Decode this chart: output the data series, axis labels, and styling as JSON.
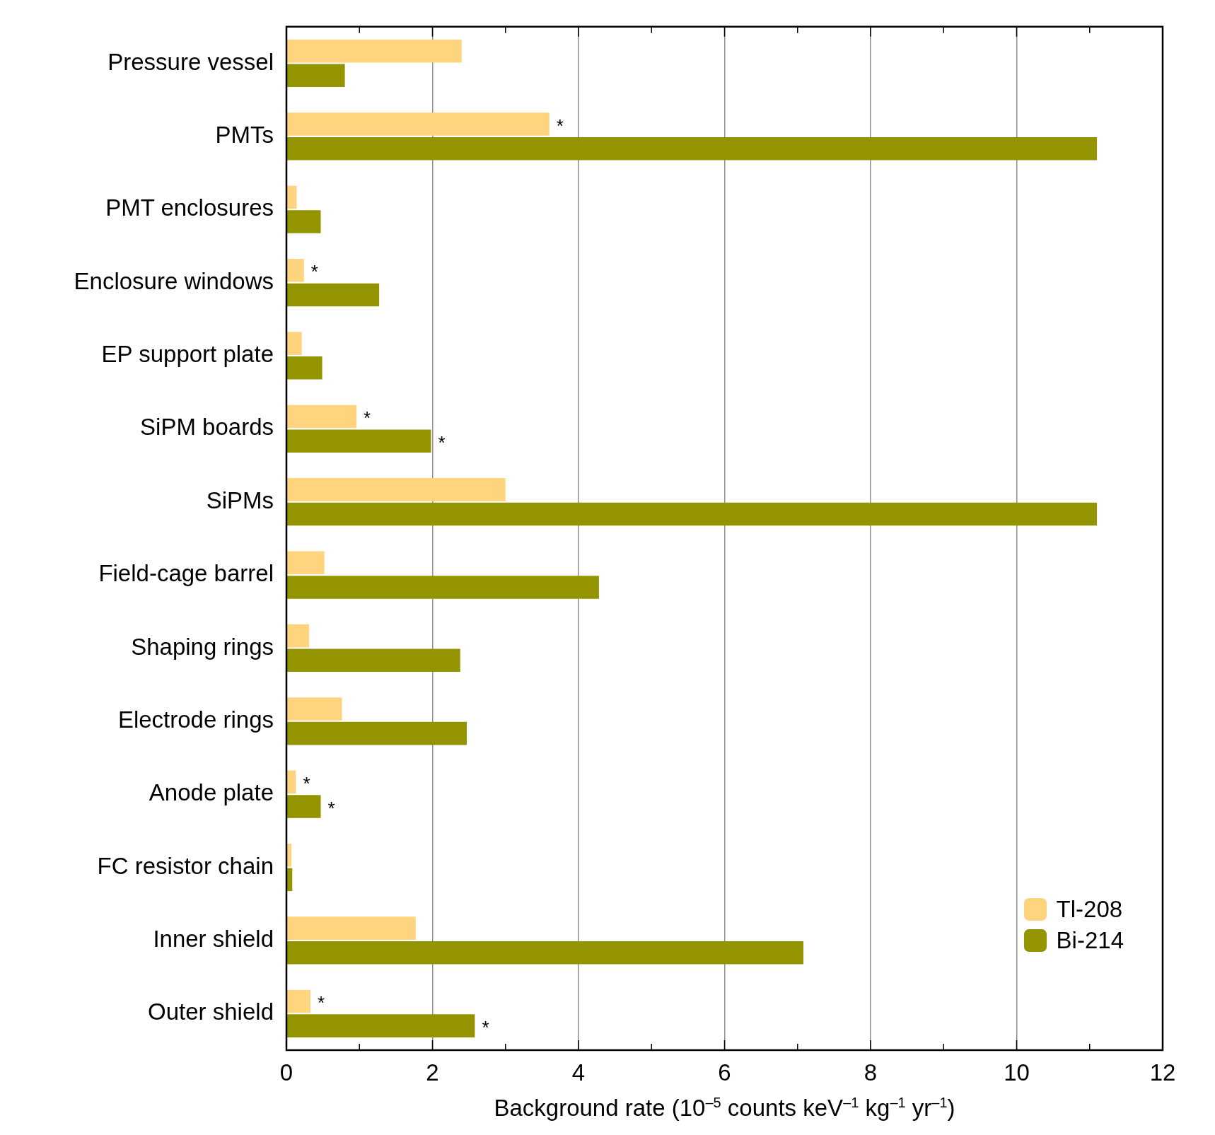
{
  "chart_data": {
    "type": "bar",
    "orientation": "horizontal",
    "xlabel": "Background rate (10$^{–5}$ counts keV$^{–1}$ kg$^{–1}$ yr$^{–1}$)",
    "categories": [
      "Pressure vessel",
      "PMTs",
      "PMT enclosures",
      "Enclosure windows",
      "EP support plate",
      "SiPM boards",
      "SiPMs",
      "Field-cage barrel",
      "Shaping rings",
      "Electrode rings",
      "Anode plate",
      "FC resistor chain",
      "Inner shield",
      "Outer shield"
    ],
    "series": [
      {
        "name": "Tl-208",
        "color": "#fed47e",
        "values": [
          2.4,
          3.6,
          0.14,
          0.24,
          0.21,
          0.96,
          3.0,
          0.52,
          0.31,
          0.76,
          0.13,
          0.07,
          1.77,
          0.33
        ],
        "value_labels": [
          null,
          "*",
          null,
          "*",
          null,
          "*",
          null,
          null,
          null,
          null,
          "*",
          null,
          null,
          "*"
        ]
      },
      {
        "name": "Bi-214",
        "color": "#949400",
        "values": [
          0.8,
          11.1,
          0.47,
          1.27,
          0.49,
          1.98,
          11.1,
          4.28,
          2.38,
          2.47,
          0.47,
          0.08,
          7.08,
          2.58
        ],
        "value_labels": [
          null,
          null,
          null,
          null,
          null,
          "*",
          null,
          null,
          null,
          null,
          "*",
          null,
          null,
          "*"
        ]
      }
    ],
    "xlim": [
      0,
      12
    ],
    "xticks": [
      0,
      {
        "value": 1,
        "label": null
      },
      2,
      {
        "value": 3,
        "label": null
      },
      4,
      {
        "value": 5,
        "label": null
      },
      6,
      {
        "value": 7,
        "label": null
      },
      8,
      {
        "value": 9,
        "label": null
      },
      10,
      {
        "value": 11,
        "label": null
      },
      12
    ],
    "grid": "x",
    "legend": "bottom right"
  }
}
